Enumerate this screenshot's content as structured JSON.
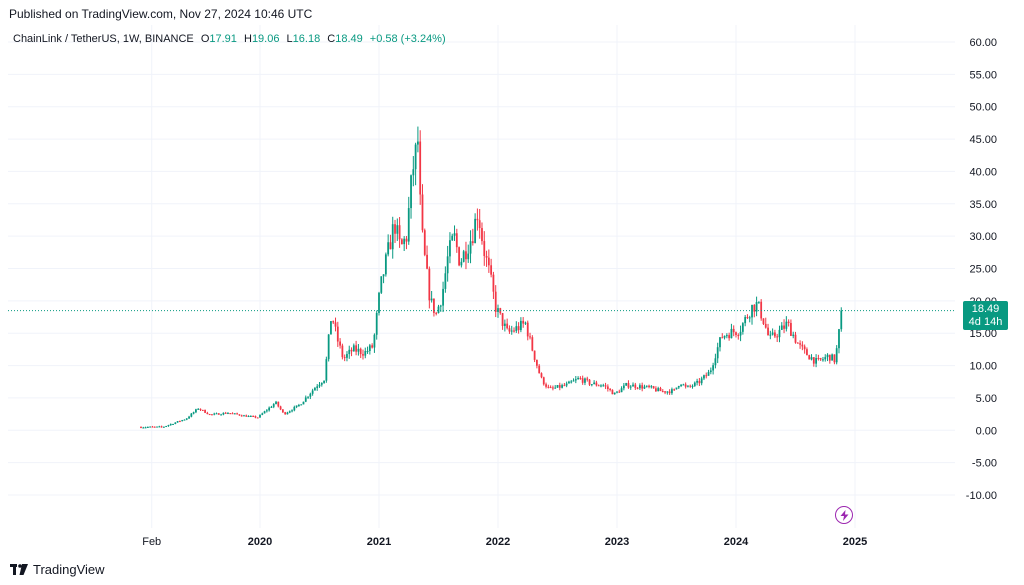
{
  "header": {
    "published": "Published on TradingView.com, Nov 27, 2024 10:46 UTC"
  },
  "legend": {
    "symbol": "ChainLink / TetherUS, 1W, BINANCE",
    "o_label": "O",
    "o_value": "17.91",
    "h_label": "H",
    "h_value": "19.06",
    "l_label": "L",
    "l_value": "16.18",
    "c_label": "C",
    "c_value": "18.49",
    "change": "+0.58 (+3.24%)"
  },
  "price_tag": {
    "price": "18.49",
    "countdown": "4d 14h"
  },
  "footer": {
    "brand": "TradingView"
  },
  "colors": {
    "up": "#089981",
    "down": "#f23645",
    "grid": "#f0f3fa",
    "text": "#131722",
    "marker": "#9c27b0"
  },
  "icons": {
    "event_marker": "flash-icon",
    "brand_logo": "tradingview-logo-icon"
  },
  "chart_data": {
    "type": "candlestick",
    "interval": "1W",
    "y_ticks": [
      "60.00",
      "55.00",
      "50.00",
      "45.00",
      "40.00",
      "35.00",
      "30.00",
      "25.00",
      "20.00",
      "15.00",
      "10.00",
      "5.00",
      "0.00",
      "-5.00",
      "-10.00"
    ],
    "ylim": [
      -10,
      60
    ],
    "x_ticks": [
      {
        "label": "Feb",
        "date": 2019.09
      },
      {
        "label": "2020",
        "date": 2020.0
      },
      {
        "label": "2021",
        "date": 2021.0
      },
      {
        "label": "2022",
        "date": 2022.0
      },
      {
        "label": "2023",
        "date": 2023.0
      },
      {
        "label": "2024",
        "date": 2024.0
      },
      {
        "label": "2025",
        "date": 2025.0
      }
    ],
    "xlim": [
      2018.1,
      2026.0
    ],
    "last_price": 18.49,
    "price_anchors": [
      [
        2019.0,
        0.5
      ],
      [
        2019.2,
        0.5
      ],
      [
        2019.4,
        1.8
      ],
      [
        2019.5,
        3.4
      ],
      [
        2019.6,
        2.4
      ],
      [
        2019.75,
        2.7
      ],
      [
        2019.9,
        2.2
      ],
      [
        2020.0,
        2.0
      ],
      [
        2020.1,
        3.5
      ],
      [
        2020.15,
        4.3
      ],
      [
        2020.22,
        2.5
      ],
      [
        2020.35,
        3.9
      ],
      [
        2020.5,
        7.0
      ],
      [
        2020.56,
        8.0
      ],
      [
        2020.62,
        18.0
      ],
      [
        2020.67,
        14.0
      ],
      [
        2020.72,
        11.0
      ],
      [
        2020.8,
        12.5
      ],
      [
        2020.9,
        12.0
      ],
      [
        2020.97,
        13.0
      ],
      [
        2021.03,
        22.0
      ],
      [
        2021.1,
        28.0
      ],
      [
        2021.15,
        32.0
      ],
      [
        2021.2,
        28.0
      ],
      [
        2021.25,
        30.0
      ],
      [
        2021.3,
        40.0
      ],
      [
        2021.35,
        45.0
      ],
      [
        2021.37,
        32.0
      ],
      [
        2021.4,
        27.0
      ],
      [
        2021.45,
        20.0
      ],
      [
        2021.5,
        18.0
      ],
      [
        2021.55,
        21.0
      ],
      [
        2021.6,
        27.0
      ],
      [
        2021.65,
        30.0
      ],
      [
        2021.7,
        26.0
      ],
      [
        2021.75,
        28.0
      ],
      [
        2021.8,
        30.0
      ],
      [
        2021.85,
        34.0
      ],
      [
        2021.9,
        28.0
      ],
      [
        2021.95,
        24.0
      ],
      [
        2022.0,
        19.0
      ],
      [
        2022.1,
        15.0
      ],
      [
        2022.2,
        16.0
      ],
      [
        2022.25,
        16.5
      ],
      [
        2022.3,
        13.0
      ],
      [
        2022.38,
        8.0
      ],
      [
        2022.45,
        6.3
      ],
      [
        2022.6,
        7.0
      ],
      [
        2022.7,
        8.0
      ],
      [
        2022.8,
        7.2
      ],
      [
        2022.9,
        7.0
      ],
      [
        2023.0,
        5.6
      ],
      [
        2023.1,
        7.0
      ],
      [
        2023.2,
        6.8
      ],
      [
        2023.3,
        6.5
      ],
      [
        2023.4,
        6.0
      ],
      [
        2023.5,
        6.1
      ],
      [
        2023.55,
        7.5
      ],
      [
        2023.6,
        6.5
      ],
      [
        2023.7,
        7.3
      ],
      [
        2023.8,
        9.0
      ],
      [
        2023.85,
        12.0
      ],
      [
        2023.9,
        14.5
      ],
      [
        2023.95,
        15.0
      ],
      [
        2024.05,
        15.5
      ],
      [
        2024.15,
        19.0
      ],
      [
        2024.2,
        19.5
      ],
      [
        2024.25,
        17.0
      ],
      [
        2024.3,
        14.0
      ],
      [
        2024.4,
        15.5
      ],
      [
        2024.45,
        16.5
      ],
      [
        2024.55,
        13.0
      ],
      [
        2024.6,
        12.0
      ],
      [
        2024.7,
        10.5
      ],
      [
        2024.8,
        11.5
      ],
      [
        2024.85,
        10.8
      ],
      [
        2024.88,
        14.0
      ],
      [
        2024.9,
        18.49
      ]
    ]
  }
}
